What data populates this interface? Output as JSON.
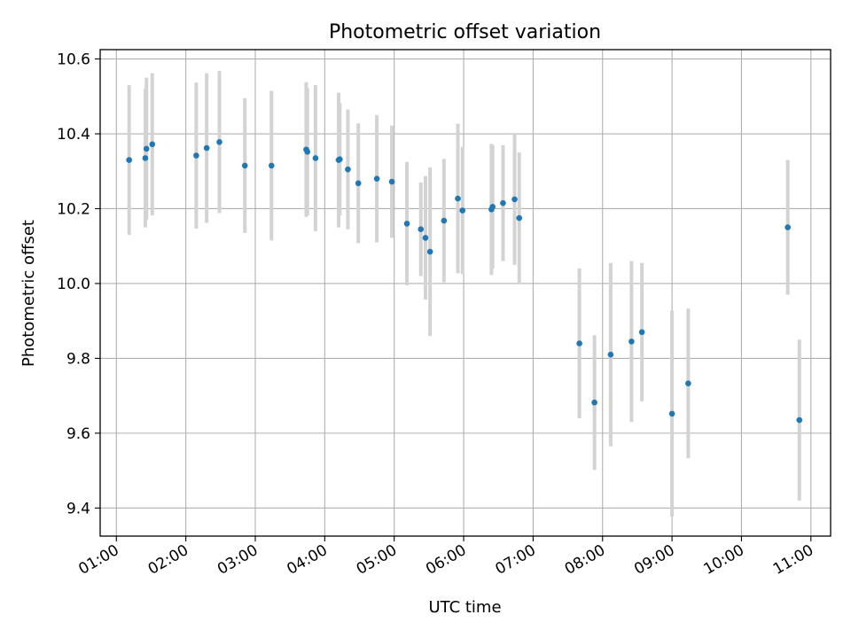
{
  "chart_data": {
    "type": "scatter",
    "title": "Photometric offset variation",
    "xlabel": "UTC time",
    "ylabel": "Photometric offset",
    "x_format": "HH:MM",
    "xlim": [
      "00:46",
      "11:17"
    ],
    "ylim": [
      9.325,
      10.625
    ],
    "x_ticks": [
      "01:00",
      "02:00",
      "03:00",
      "04:00",
      "05:00",
      "06:00",
      "07:00",
      "08:00",
      "09:00",
      "10:00",
      "11:00"
    ],
    "y_ticks": [
      9.4,
      9.6,
      9.8,
      10.0,
      10.2,
      10.4,
      10.6
    ],
    "y_tick_labels": [
      "9.4",
      "9.6",
      "9.8",
      "10.0",
      "10.2",
      "10.4",
      "10.6"
    ],
    "grid": true,
    "point_color": "#1f77b4",
    "error_bar_color": "#d3d3d3",
    "points": [
      {
        "x": "01:11",
        "y": 10.33,
        "err": 0.2
      },
      {
        "x": "01:25",
        "y": 10.335,
        "err": 0.185
      },
      {
        "x": "01:26",
        "y": 10.36,
        "err": 0.19
      },
      {
        "x": "01:31",
        "y": 10.372,
        "err": 0.19
      },
      {
        "x": "02:09",
        "y": 10.342,
        "err": 0.195
      },
      {
        "x": "02:18",
        "y": 10.362,
        "err": 0.2
      },
      {
        "x": "02:29",
        "y": 10.378,
        "err": 0.19
      },
      {
        "x": "02:51",
        "y": 10.315,
        "err": 0.18
      },
      {
        "x": "03:14",
        "y": 10.315,
        "err": 0.2
      },
      {
        "x": "03:44",
        "y": 10.358,
        "err": 0.18
      },
      {
        "x": "03:45",
        "y": 10.352,
        "err": 0.17
      },
      {
        "x": "03:52",
        "y": 10.335,
        "err": 0.195
      },
      {
        "x": "04:12",
        "y": 10.33,
        "err": 0.18
      },
      {
        "x": "04:13",
        "y": 10.332,
        "err": 0.15
      },
      {
        "x": "04:20",
        "y": 10.305,
        "err": 0.16
      },
      {
        "x": "04:29",
        "y": 10.268,
        "err": 0.16
      },
      {
        "x": "04:45",
        "y": 10.28,
        "err": 0.17
      },
      {
        "x": "04:58",
        "y": 10.272,
        "err": 0.15
      },
      {
        "x": "05:11",
        "y": 10.16,
        "err": 0.165
      },
      {
        "x": "05:23",
        "y": 10.145,
        "err": 0.125
      },
      {
        "x": "05:27",
        "y": 10.122,
        "err": 0.165
      },
      {
        "x": "05:31",
        "y": 10.085,
        "err": 0.225
      },
      {
        "x": "05:43",
        "y": 10.168,
        "err": 0.165
      },
      {
        "x": "05:55",
        "y": 10.227,
        "err": 0.2
      },
      {
        "x": "05:59",
        "y": 10.195,
        "err": 0.17
      },
      {
        "x": "06:24",
        "y": 10.198,
        "err": 0.175
      },
      {
        "x": "06:25",
        "y": 10.205,
        "err": 0.165
      },
      {
        "x": "06:34",
        "y": 10.215,
        "err": 0.155
      },
      {
        "x": "06:44",
        "y": 10.225,
        "err": 0.175
      },
      {
        "x": "06:48",
        "y": 10.175,
        "err": 0.175
      },
      {
        "x": "07:40",
        "y": 9.84,
        "err": 0.2
      },
      {
        "x": "07:53",
        "y": 9.682,
        "err": 0.18
      },
      {
        "x": "08:07",
        "y": 9.81,
        "err": 0.245
      },
      {
        "x": "08:25",
        "y": 9.845,
        "err": 0.215
      },
      {
        "x": "08:34",
        "y": 9.87,
        "err": 0.185
      },
      {
        "x": "09:00",
        "y": 9.652,
        "err": 0.275
      },
      {
        "x": "09:14",
        "y": 9.733,
        "err": 0.2
      },
      {
        "x": "10:40",
        "y": 10.15,
        "err": 0.18
      },
      {
        "x": "10:50",
        "y": 9.635,
        "err": 0.215
      }
    ]
  }
}
